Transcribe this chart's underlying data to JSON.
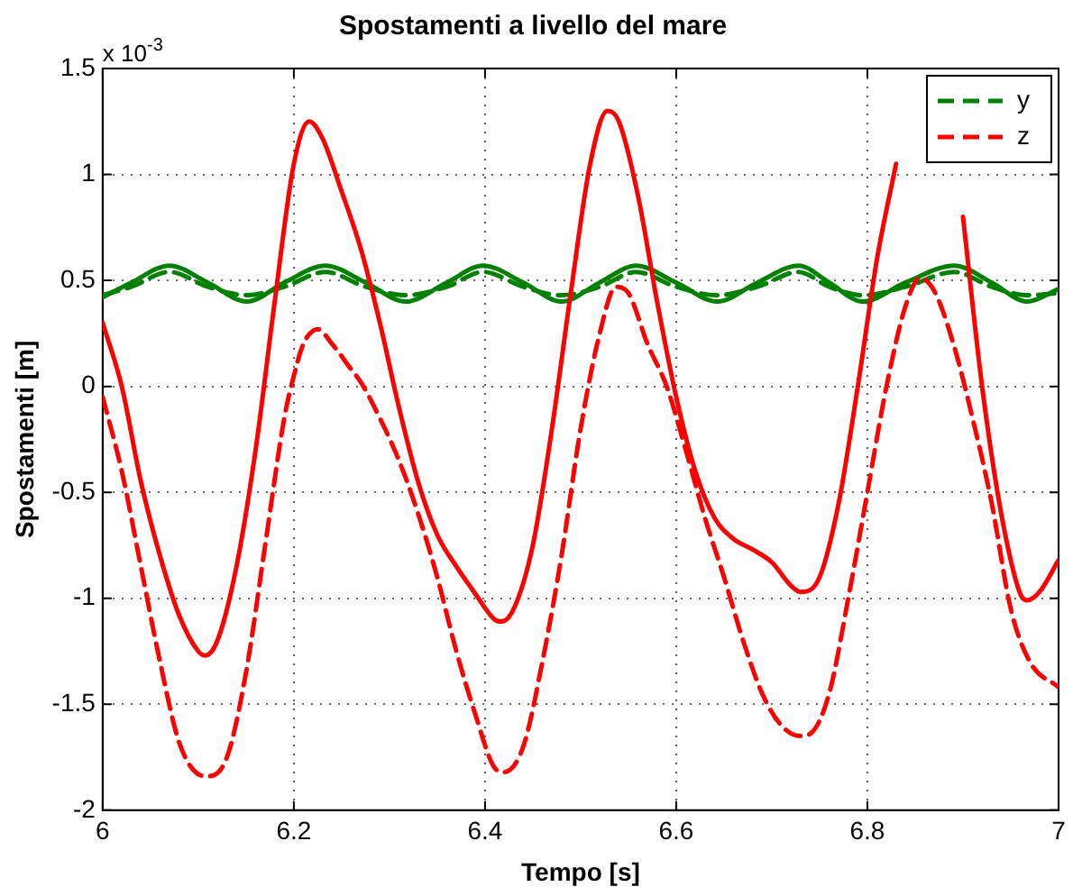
{
  "chart_data": {
    "type": "line",
    "title": "Spostamenti a livello del mare",
    "xlabel": "Tempo [s]",
    "ylabel": "Spostamenti [m]",
    "annotations": [
      "x 10$^{-3}$"
    ],
    "xlim": [
      6,
      7
    ],
    "xticks": [
      6,
      6.2,
      6.4,
      6.6,
      6.8,
      7
    ],
    "ylim": [
      -2,
      1.5
    ],
    "yticks": [
      -2,
      -1.5,
      -1,
      -0.5,
      0,
      0.5,
      1,
      1.5
    ],
    "grid": true,
    "legend": "top right",
    "marker": "none",
    "series": [
      {
        "color": "#008000",
        "line_style": "solid",
        "x": [
          6,
          6.03,
          6.07,
          6.11,
          6.151,
          6.19,
          6.233,
          6.275,
          6.317,
          6.36,
          6.398,
          6.44,
          6.48,
          6.52,
          6.558,
          6.6,
          6.643,
          6.685,
          6.728,
          6.76,
          6.795,
          6.84,
          6.891,
          6.93,
          6.967,
          7
        ],
        "values": [
          0.42,
          0.49,
          0.57,
          0.49,
          0.4,
          0.49,
          0.57,
          0.49,
          0.4,
          0.49,
          0.57,
          0.49,
          0.4,
          0.49,
          0.57,
          0.49,
          0.4,
          0.49,
          0.57,
          0.49,
          0.4,
          0.49,
          0.57,
          0.49,
          0.4,
          0.46
        ]
      },
      {
        "name": "y",
        "color": "#008000",
        "line_style": "dashed",
        "x": [
          6,
          6.03,
          6.07,
          6.11,
          6.151,
          6.19,
          6.233,
          6.275,
          6.317,
          6.36,
          6.398,
          6.44,
          6.48,
          6.52,
          6.558,
          6.6,
          6.643,
          6.685,
          6.728,
          6.76,
          6.795,
          6.84,
          6.891,
          6.93,
          6.967,
          7
        ],
        "values": [
          0.43,
          0.47,
          0.54,
          0.47,
          0.43,
          0.47,
          0.54,
          0.47,
          0.43,
          0.47,
          0.54,
          0.47,
          0.43,
          0.47,
          0.54,
          0.47,
          0.43,
          0.47,
          0.54,
          0.47,
          0.43,
          0.47,
          0.54,
          0.47,
          0.43,
          0.44
        ]
      },
      {
        "color": "#ff0000",
        "line_style": "solid",
        "x": [
          6,
          6.02,
          6.04,
          6.06,
          6.08,
          6.1,
          6.107,
          6.12,
          6.14,
          6.16,
          6.18,
          6.2,
          6.216,
          6.23,
          6.25,
          6.27,
          6.29,
          6.31,
          6.33,
          6.35,
          6.37,
          6.39,
          6.41,
          6.417,
          6.43,
          6.45,
          6.47,
          6.49,
          6.51,
          6.528,
          6.54,
          6.56,
          6.58,
          6.6,
          6.62,
          6.64,
          6.66,
          6.68,
          6.7,
          6.72,
          6.73,
          6.75,
          6.77,
          6.79,
          6.81,
          6.83,
          6.86,
          6.88,
          6.9,
          6.92,
          6.94,
          6.96,
          6.967,
          6.98,
          7
        ],
        "values": [
          0.3,
          0.0,
          -0.45,
          -0.8,
          -1.08,
          -1.25,
          -1.27,
          -1.2,
          -0.85,
          -0.3,
          0.4,
          1.05,
          1.25,
          1.17,
          0.92,
          0.65,
          0.3,
          -0.1,
          -0.45,
          -0.7,
          -0.85,
          -0.98,
          -1.1,
          -1.11,
          -1.05,
          -0.75,
          -0.2,
          0.45,
          1.05,
          1.3,
          1.25,
          0.9,
          0.4,
          -0.05,
          -0.4,
          -0.62,
          -0.72,
          -0.77,
          -0.83,
          -0.94,
          -0.97,
          -0.9,
          -0.55,
          0.0,
          0.6,
          1.05,
          null,
          null,
          0.8,
          0.0,
          -0.6,
          -0.98,
          -1.01,
          -0.97,
          -0.82
        ]
      },
      {
        "name": "z",
        "color": "#ff0000",
        "line_style": "dashed",
        "x": [
          6,
          6.02,
          6.04,
          6.06,
          6.08,
          6.1,
          6.11,
          6.13,
          6.15,
          6.17,
          6.19,
          6.2,
          6.21,
          6.225,
          6.24,
          6.26,
          6.27,
          6.29,
          6.31,
          6.33,
          6.35,
          6.37,
          6.39,
          6.41,
          6.42,
          6.44,
          6.46,
          6.48,
          6.5,
          6.52,
          6.537,
          6.55,
          6.57,
          6.59,
          6.61,
          6.63,
          6.65,
          6.67,
          6.69,
          6.71,
          6.73,
          6.74,
          6.76,
          6.78,
          6.8,
          6.82,
          6.84,
          6.855,
          6.87,
          6.89,
          6.91,
          6.93,
          6.95,
          6.97,
          7
        ],
        "values": [
          -0.05,
          -0.4,
          -0.85,
          -1.3,
          -1.68,
          -1.83,
          -1.84,
          -1.75,
          -1.35,
          -0.75,
          -0.15,
          0.05,
          0.2,
          0.27,
          0.2,
          0.08,
          0.02,
          -0.15,
          -0.35,
          -0.6,
          -0.9,
          -1.25,
          -1.55,
          -1.8,
          -1.82,
          -1.7,
          -1.3,
          -0.8,
          -0.2,
          0.25,
          0.47,
          0.44,
          0.2,
          0.0,
          -0.3,
          -0.62,
          -0.9,
          -1.2,
          -1.45,
          -1.6,
          -1.65,
          -1.64,
          -1.45,
          -1.0,
          -0.5,
          0.0,
          0.38,
          0.51,
          0.45,
          0.2,
          -0.15,
          -0.55,
          -1.05,
          -1.3,
          -1.42
        ]
      }
    ]
  }
}
